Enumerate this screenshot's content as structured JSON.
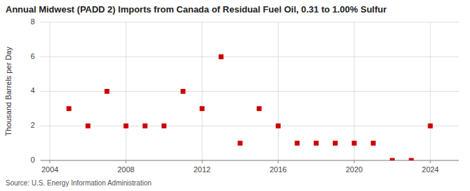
{
  "chart_data": {
    "type": "scatter",
    "title": "Annual Midwest (PADD 2) Imports from Canada of Residual Fuel Oil, 0.31 to 1.00% Sulfur",
    "ylabel": "Thousand Barrels per Day",
    "annotations": [
      "Source: U.S. Energy Information Administration"
    ],
    "x": [
      2005,
      2006,
      2007,
      2008,
      2009,
      2010,
      2011,
      2012,
      2013,
      2014,
      2015,
      2016,
      2017,
      2018,
      2019,
      2020,
      2021,
      2022,
      2023,
      2024
    ],
    "values": [
      3,
      2,
      4,
      2,
      2,
      2,
      4,
      3,
      6,
      1,
      3,
      2,
      1,
      1,
      1,
      1,
      1,
      0,
      0,
      2
    ],
    "color": "#cc0000",
    "marker": "square",
    "xlim": [
      2003.5,
      2025.5
    ],
    "ylim": [
      0,
      8
    ],
    "xticks": [
      2004,
      2008,
      2012,
      2016,
      2020,
      2024
    ],
    "yticks": [
      0,
      2,
      4,
      6,
      8
    ],
    "grid": true
  }
}
